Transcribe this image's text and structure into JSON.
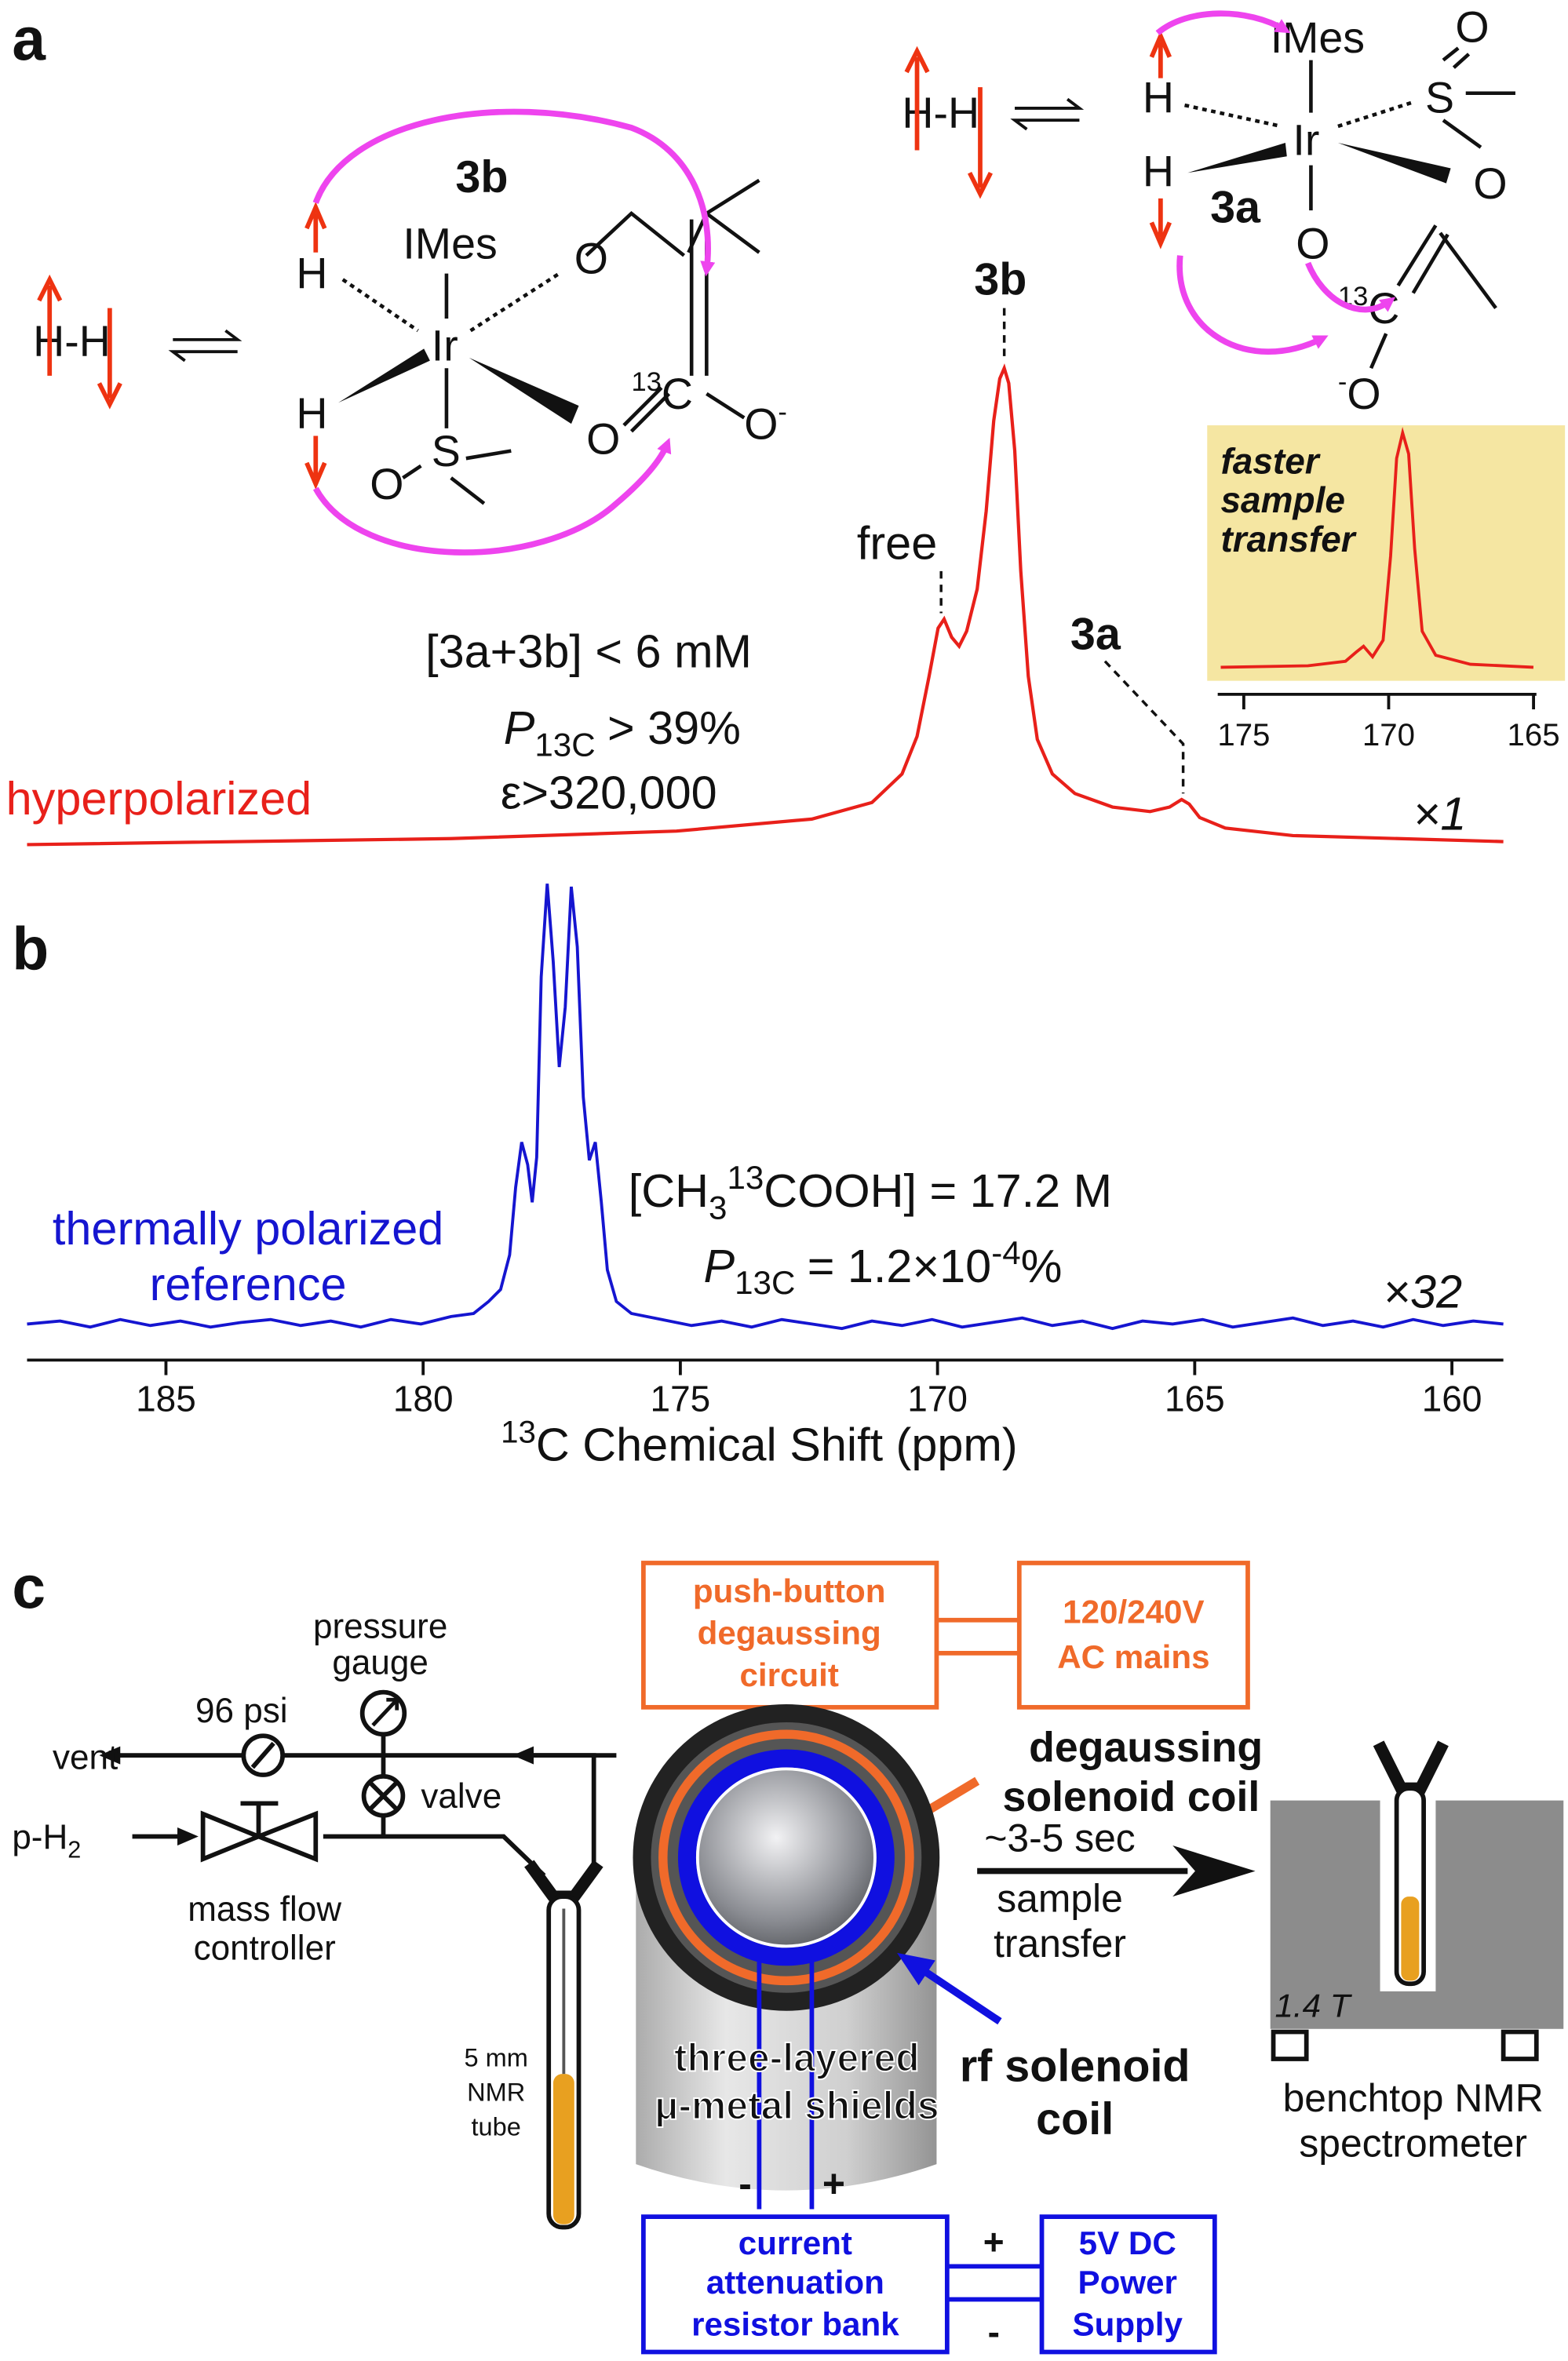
{
  "panel_a": {
    "label": "a",
    "left_scheme": {
      "h2": "H-H",
      "complex": "3b",
      "ligand": "IMes",
      "metal": "Ir",
      "hydrides": [
        "H",
        "H"
      ],
      "sulfur": "S",
      "oxygens": [
        "O",
        "O",
        "O",
        "O"
      ],
      "isotope": "13",
      "carbon": "C",
      "charge": "-"
    },
    "right_scheme": {
      "h2": "H-H",
      "complex": "3a",
      "ligand": "IMes",
      "metal": "Ir",
      "hydrides": [
        "H",
        "H"
      ],
      "sulfur": "S",
      "oxygens": [
        "O",
        "O",
        "O",
        "O"
      ],
      "isotope": "13",
      "carbon": "C",
      "charge": "-"
    },
    "spectrum": {
      "trace": "hyperpolarized",
      "scale": "×1",
      "peak_labels": [
        "free",
        "3b",
        "3a"
      ],
      "concentration": "[3a+3b] < 6 mM",
      "polarization": {
        "symbol": "P",
        "subscript": "13C",
        "text": "> 39%"
      },
      "enhancement": "ε>320,000"
    },
    "inset": {
      "caption": [
        "faster",
        "sample",
        "transfer"
      ],
      "xlim": [
        175.9,
        164.9
      ],
      "xticks": [
        175,
        170,
        165
      ]
    }
  },
  "panel_b": {
    "label": "b",
    "trace": [
      "thermally polarized",
      "reference"
    ],
    "scale": "×32",
    "concentration": {
      "open": "[CH",
      "subscript": "3",
      "superscript": "13",
      "close": "COOH] = 17.2 M"
    },
    "polarization": {
      "symbol": "P",
      "subscript": "13C",
      "text": "= 1.2×10",
      "superscript": "-4",
      "unit": "%"
    },
    "axis": {
      "xlim": [
        187.7,
        159.0
      ],
      "xticks": [
        185,
        180,
        175,
        170,
        165,
        160
      ],
      "xlabel_superscript": "13",
      "xlabel": "C Chemical Shift (ppm)"
    }
  },
  "panel_c": {
    "label": "c",
    "gas_handling": {
      "gauge_reading": "96 psi",
      "pressure_gauge": [
        "pressure",
        "gauge"
      ],
      "vent": "vent",
      "valve": "valve",
      "inlet": "p-H",
      "inlet_subscript": "2",
      "flow_controller": [
        "mass flow",
        "controller"
      ],
      "tube": [
        "5 mm",
        "NMR",
        "tube"
      ]
    },
    "degaussing_circuit": [
      "push-button",
      "degaussing",
      "circuit"
    ],
    "mains": [
      "120/240V",
      "AC mains"
    ],
    "degaussing_coil": [
      "degaussing",
      "solenoid coil"
    ],
    "shields": [
      "three-layered",
      "μ-metal shields"
    ],
    "rf_coil": [
      "rf solenoid",
      "coil"
    ],
    "coil_leads": [
      "-",
      "+"
    ],
    "resistor_bank": [
      "current",
      "attenuation",
      "resistor bank"
    ],
    "power_supply": [
      "5V DC",
      "Power",
      "Supply"
    ],
    "supply_leads": [
      "+",
      "-"
    ],
    "transfer": [
      "~3-5 sec",
      "sample",
      "transfer"
    ],
    "field": "1.4 T",
    "spectrometer": [
      "benchtop NMR",
      "spectrometer"
    ]
  }
}
